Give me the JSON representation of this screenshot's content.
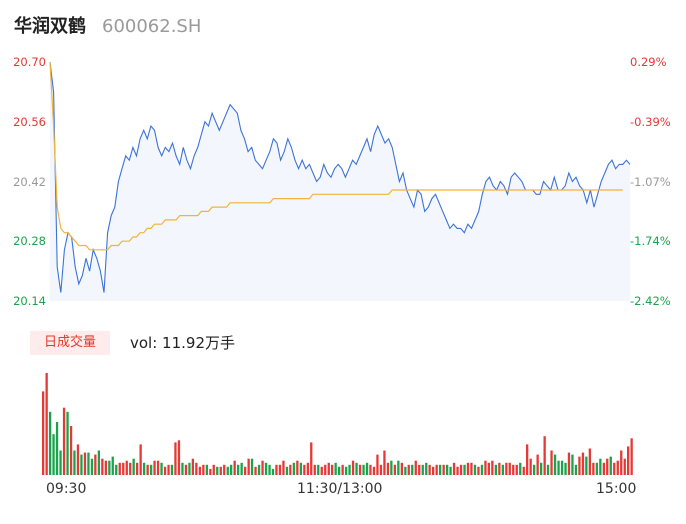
{
  "header": {
    "name": "华润双鹤",
    "code": "600062.SH"
  },
  "colors": {
    "up": "#e53935",
    "down": "#1aa34a",
    "neutral": "#999999",
    "price_line": "#3b73d8",
    "avg_line": "#f2b33b",
    "area_fill": "#f3f6fd"
  },
  "volume": {
    "badge": "日成交量",
    "text": "vol: 11.92万手"
  },
  "chart_data": [
    {
      "type": "line",
      "title": "",
      "ylim": [
        20.14,
        20.7
      ],
      "y_ticks": [
        "20.70",
        "20.56",
        "20.42",
        "20.28",
        "20.14"
      ],
      "pct_ticks": [
        "0.29%",
        "-0.39%",
        "-1.07%",
        "-1.74%",
        "-2.42%"
      ],
      "x_ticks": [
        "09:30",
        "11:30/13:00",
        "15:00"
      ],
      "series": [
        {
          "values": [
            20.7,
            20.63,
            20.22,
            20.16,
            20.26,
            20.3,
            20.29,
            20.22,
            20.18,
            20.2,
            20.24,
            20.21,
            20.26,
            20.24,
            20.21,
            20.16,
            20.3,
            20.34,
            20.36,
            20.42,
            20.45,
            20.48,
            20.47,
            20.5,
            20.48,
            20.52,
            20.54,
            20.52,
            20.55,
            20.54,
            20.5,
            20.48,
            20.5,
            20.49,
            20.51,
            20.48,
            20.46,
            20.5,
            20.47,
            20.45,
            20.48,
            20.5,
            20.53,
            20.56,
            20.55,
            20.58,
            20.56,
            20.54,
            20.56,
            20.58,
            20.6,
            20.59,
            20.58,
            20.54,
            20.52,
            20.49,
            20.5,
            20.47,
            20.46,
            20.45,
            20.47,
            20.49,
            20.52,
            20.51,
            20.47,
            20.49,
            20.52,
            20.5,
            20.47,
            20.45,
            20.47,
            20.45,
            20.46,
            20.44,
            20.42,
            20.43,
            20.46,
            20.44,
            20.43,
            20.45,
            20.46,
            20.45,
            20.43,
            20.45,
            20.47,
            20.46,
            20.48,
            20.5,
            20.52,
            20.49,
            20.53,
            20.55,
            20.53,
            20.51,
            20.52,
            20.5,
            20.46,
            20.42,
            20.44,
            20.4,
            20.38,
            20.36,
            20.4,
            20.39,
            20.35,
            20.36,
            20.38,
            20.39,
            20.37,
            20.35,
            20.33,
            20.31,
            20.32,
            20.31,
            20.31,
            20.3,
            20.32,
            20.31,
            20.33,
            20.35,
            20.39,
            20.42,
            20.43,
            20.41,
            20.4,
            20.42,
            20.41,
            20.39,
            20.43,
            20.44,
            20.43,
            20.42,
            20.4,
            20.4,
            20.4,
            20.39,
            20.39,
            20.42,
            20.41,
            20.4,
            20.43,
            20.4,
            20.4,
            20.41,
            20.44,
            20.42,
            20.43,
            20.41,
            20.4,
            20.37,
            20.4,
            20.36,
            20.39,
            20.42,
            20.44,
            20.46,
            20.47,
            20.45,
            20.46,
            20.46,
            20.47,
            20.46
          ],
          "color": "#3b73d8"
        },
        {
          "values": [
            20.7,
            20.55,
            20.36,
            20.31,
            20.3,
            20.3,
            20.29,
            20.28,
            20.27,
            20.27,
            20.27,
            20.26,
            20.26,
            20.26,
            20.26,
            20.26,
            20.26,
            20.27,
            20.27,
            20.27,
            20.28,
            20.28,
            20.28,
            20.29,
            20.29,
            20.3,
            20.3,
            20.31,
            20.31,
            20.32,
            20.32,
            20.32,
            20.33,
            20.33,
            20.33,
            20.33,
            20.34,
            20.34,
            20.34,
            20.34,
            20.34,
            20.34,
            20.35,
            20.35,
            20.35,
            20.36,
            20.36,
            20.36,
            20.36,
            20.36,
            20.37,
            20.37,
            20.37,
            20.37,
            20.37,
            20.37,
            20.37,
            20.37,
            20.37,
            20.37,
            20.37,
            20.37,
            20.38,
            20.38,
            20.38,
            20.38,
            20.38,
            20.38,
            20.38,
            20.38,
            20.38,
            20.38,
            20.38,
            20.39,
            20.39,
            20.39,
            20.39,
            20.39,
            20.39,
            20.39,
            20.39,
            20.39,
            20.39,
            20.39,
            20.39,
            20.39,
            20.39,
            20.39,
            20.39,
            20.39,
            20.39,
            20.39,
            20.39,
            20.39,
            20.39,
            20.4,
            20.4,
            20.4,
            20.4,
            20.4,
            20.4,
            20.4,
            20.4,
            20.4,
            20.4,
            20.4,
            20.4,
            20.4,
            20.4,
            20.4,
            20.4,
            20.4,
            20.4,
            20.4,
            20.4,
            20.4,
            20.4,
            20.4,
            20.4,
            20.4,
            20.4,
            20.4,
            20.4,
            20.4,
            20.4,
            20.4,
            20.4,
            20.4,
            20.4,
            20.4,
            20.4,
            20.4,
            20.4,
            20.4,
            20.4,
            20.4,
            20.4,
            20.4,
            20.4,
            20.4,
            20.4,
            20.4,
            20.4,
            20.4,
            20.4,
            20.4,
            20.4,
            20.4,
            20.4,
            20.4,
            20.4,
            20.4,
            20.4,
            20.4,
            20.4,
            20.4,
            20.4,
            20.4,
            20.4,
            20.4
          ],
          "color": "#f2b33b"
        }
      ]
    },
    {
      "type": "bar",
      "title": "",
      "series": [
        {
          "values": [
            82,
            100,
            62,
            40,
            52,
            24,
            66,
            62,
            48,
            24,
            30,
            20,
            22,
            22,
            16,
            20,
            24,
            16,
            14,
            14,
            18,
            10,
            12,
            12,
            14,
            12,
            16,
            12,
            30,
            12,
            10,
            10,
            14,
            14,
            12,
            8,
            10,
            10,
            32,
            34,
            12,
            10,
            12,
            16,
            12,
            8,
            10,
            10,
            6,
            10,
            8,
            8,
            10,
            8,
            10,
            14,
            10,
            12,
            8,
            16,
            16,
            8,
            10,
            14,
            12,
            10,
            6,
            10,
            10,
            14,
            8,
            10,
            12,
            14,
            12,
            10,
            12,
            32,
            10,
            10,
            8,
            10,
            12,
            10,
            12,
            8,
            10,
            8,
            10,
            14,
            12,
            10,
            10,
            12,
            10,
            8,
            20,
            10,
            24,
            12,
            14,
            10,
            14,
            12,
            8,
            10,
            10,
            14,
            10,
            10,
            12,
            10,
            8,
            10,
            10,
            10,
            10,
            8,
            12,
            8,
            10,
            10,
            12,
            12,
            10,
            8,
            10,
            14,
            12,
            14,
            10,
            12,
            10,
            12,
            12,
            10,
            10,
            12,
            8,
            30,
            16,
            10,
            20,
            12,
            38,
            10,
            24,
            20,
            14,
            14,
            12,
            22,
            20,
            10,
            18,
            22,
            18,
            26,
            12,
            12,
            16,
            12,
            16,
            18,
            12,
            14,
            24,
            16,
            28,
            36
          ],
          "colors": "rrggggrgrgrgrggrgrrgggrrrrgrrgrgrrgrrgrrgrgrrrrgrrgrrggrggrrgrgrgggrrrgrgrgrrrrgrrrrggrggrgrggrrrrrrgrgrgrgrrggrrrgrggrrrgrrgrgrrrgrgrrrrgrrrgrgrgrggggrggrrgrrggrrgrr"
        }
      ]
    }
  ]
}
